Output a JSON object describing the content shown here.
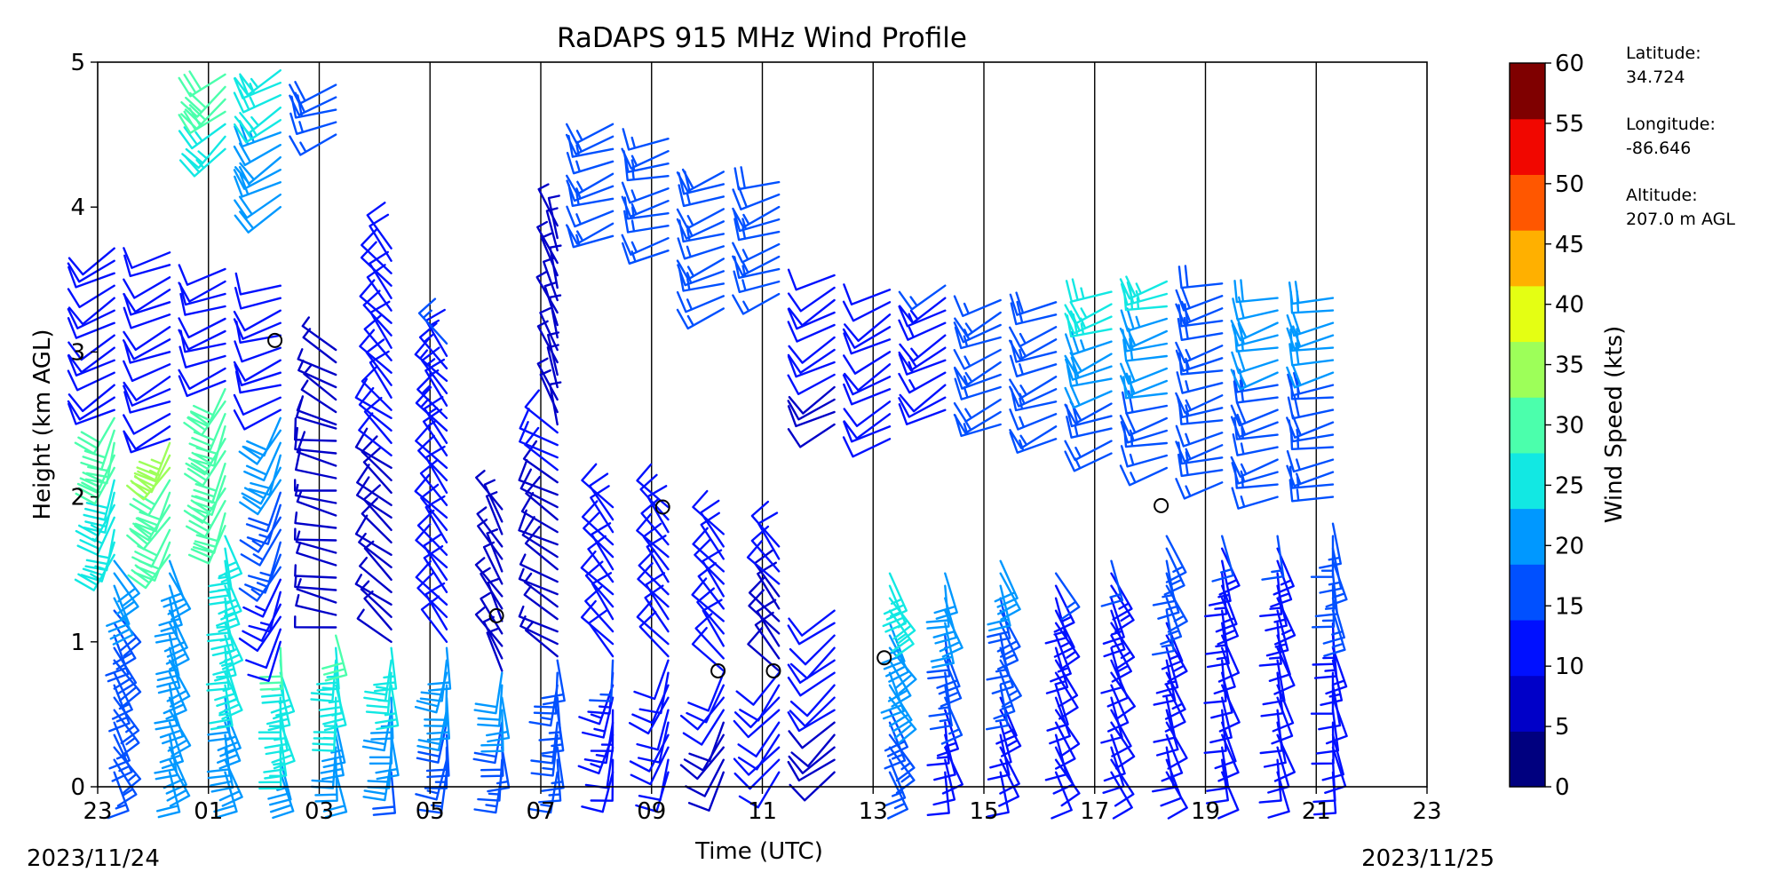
{
  "chart_data": {
    "type": "wind-barb profile",
    "title": "RaDAPS 915 MHz Wind Profile",
    "xlabel": "Time (UTC)",
    "ylabel": "Height (km AGL)",
    "ylim": [
      0,
      5
    ],
    "y_ticks": [
      "0",
      "1",
      "2",
      "3",
      "4",
      "5"
    ],
    "x_range_hours": [
      0,
      24
    ],
    "x_tick_labels": [
      "23",
      "01",
      "03",
      "05",
      "07",
      "09",
      "11",
      "13",
      "15",
      "17",
      "19",
      "21",
      "23"
    ],
    "x_start_date": "2023/11/24",
    "x_end_date": "2023/11/25",
    "vertical_grid": true,
    "colorbar": {
      "label": "Wind Speed (kts)",
      "ticks": [
        "0",
        "5",
        "10",
        "15",
        "20",
        "25",
        "30",
        "35",
        "40",
        "45",
        "50",
        "55",
        "60"
      ],
      "colors": [
        "#00007f",
        "#0000c8",
        "#0010ff",
        "#0050ff",
        "#0098ff",
        "#12e8e3",
        "#4bffac",
        "#9dff59",
        "#e4ff13",
        "#ffb000",
        "#ff5700",
        "#f10700",
        "#7f0000"
      ]
    },
    "profiles": [
      {
        "time_h": 0.3,
        "segments": [
          [
            0.1,
            1.6,
            150,
            16,
            19
          ],
          [
            1.6,
            2.6,
            200,
            26,
            29
          ],
          [
            2.6,
            3.8,
            240,
            12,
            12
          ]
        ]
      },
      {
        "time_h": 1.3,
        "segments": [
          [
            0.1,
            1.6,
            160,
            20,
            22
          ],
          [
            1.6,
            2.4,
            210,
            30,
            33
          ],
          [
            2.4,
            3.7,
            245,
            12,
            12
          ]
        ]
      },
      {
        "time_h": 2.3,
        "segments": [
          [
            0.1,
            1.8,
            165,
            22,
            25
          ],
          [
            1.8,
            2.8,
            205,
            28,
            32
          ],
          [
            2.8,
            3.6,
            250,
            10,
            11
          ],
          [
            4.4,
            5.0,
            230,
            26,
            30
          ]
        ]
      },
      {
        "time_h": 3.3,
        "segments": [
          [
            0.1,
            1.0,
            170,
            22,
            28
          ],
          [
            1.0,
            2.6,
            205,
            10,
            22
          ],
          [
            2.6,
            3.5,
            250,
            10,
            10
          ],
          [
            4.0,
            5.0,
            240,
            20,
            25
          ]
        ]
      },
      {
        "time_h": 4.3,
        "segments": [
          [
            0.1,
            1.1,
            175,
            20,
            28
          ],
          [
            1.1,
            2.5,
            280,
            6,
            8
          ],
          [
            2.5,
            3.1,
            300,
            6,
            6
          ],
          [
            4.5,
            4.9,
            250,
            17,
            18
          ]
        ]
      },
      {
        "time_h": 5.3,
        "segments": [
          [
            0.1,
            1.0,
            180,
            18,
            26
          ],
          [
            1.0,
            2.6,
            310,
            6,
            10
          ],
          [
            2.6,
            3.8,
            320,
            12,
            12
          ]
        ]
      },
      {
        "time_h": 6.3,
        "segments": [
          [
            0.1,
            1.0,
            185,
            16,
            22
          ],
          [
            1.0,
            3.1,
            320,
            10,
            14
          ]
        ]
      },
      {
        "time_h": 7.3,
        "segments": [
          [
            0.1,
            0.8,
            180,
            16,
            20
          ],
          [
            0.8,
            2.0,
            330,
            6,
            6
          ]
        ]
      },
      {
        "time_h": 8.3,
        "segments": [
          [
            0.1,
            0.9,
            180,
            14,
            18
          ],
          [
            0.9,
            2.5,
            300,
            6,
            10
          ],
          [
            2.5,
            3.9,
            340,
            6,
            6
          ]
        ]
      },
      {
        "time_h": 9.3,
        "segments": [
          [
            0.1,
            0.9,
            190,
            12,
            14
          ],
          [
            0.9,
            2.0,
            320,
            10,
            12
          ],
          [
            3.8,
            4.6,
            250,
            15,
            16
          ]
        ]
      },
      {
        "time_h": 10.3,
        "segments": [
          [
            0.1,
            0.9,
            200,
            10,
            12
          ],
          [
            0.9,
            2.0,
            320,
            10,
            10
          ],
          [
            3.7,
            4.5,
            255,
            15,
            16
          ]
        ]
      },
      {
        "time_h": 11.3,
        "segments": [
          [
            0.1,
            0.8,
            210,
            8,
            10
          ],
          [
            0.8,
            1.8,
            320,
            10,
            12
          ],
          [
            3.3,
            4.3,
            250,
            15,
            18
          ]
        ]
      },
      {
        "time_h": 12.3,
        "segments": [
          [
            0.1,
            0.8,
            220,
            10,
            10
          ],
          [
            0.8,
            1.7,
            320,
            8,
            10
          ],
          [
            3.4,
            4.2,
            250,
            14,
            18
          ]
        ]
      },
      {
        "time_h": 13.3,
        "segments": [
          [
            0.1,
            1.3,
            230,
            8,
            12
          ],
          [
            2.5,
            3.6,
            240,
            8,
            12
          ]
        ]
      },
      {
        "time_h": 14.3,
        "segments": [
          [
            0.1,
            1.5,
            150,
            14,
            26
          ],
          [
            2.4,
            3.5,
            240,
            10,
            12
          ]
        ]
      },
      {
        "time_h": 15.3,
        "segments": [
          [
            0.1,
            1.5,
            165,
            10,
            22
          ],
          [
            2.6,
            3.5,
            240,
            12,
            14
          ]
        ]
      },
      {
        "time_h": 16.3,
        "segments": [
          [
            0.1,
            1.6,
            160,
            10,
            20
          ],
          [
            2.5,
            3.4,
            245,
            14,
            17
          ]
        ]
      },
      {
        "time_h": 17.3,
        "segments": [
          [
            0.1,
            1.5,
            155,
            10,
            14
          ],
          [
            2.4,
            3.4,
            248,
            14,
            18
          ]
        ]
      },
      {
        "time_h": 18.3,
        "segments": [
          [
            0.1,
            1.6,
            155,
            10,
            14
          ],
          [
            2.3,
            3.5,
            250,
            15,
            26
          ]
        ]
      },
      {
        "time_h": 19.3,
        "segments": [
          [
            0.1,
            1.8,
            160,
            10,
            16
          ],
          [
            2.2,
            3.5,
            255,
            15,
            25
          ]
        ]
      },
      {
        "time_h": 20.3,
        "segments": [
          [
            0.1,
            1.8,
            165,
            10,
            14
          ],
          [
            2.1,
            3.5,
            255,
            16,
            18
          ]
        ]
      },
      {
        "time_h": 21.3,
        "segments": [
          [
            0.1,
            1.8,
            165,
            10,
            14
          ],
          [
            2.0,
            3.4,
            255,
            16,
            20
          ]
        ]
      },
      {
        "time_h": 22.3,
        "segments": [
          [
            0.1,
            1.9,
            170,
            10,
            16
          ],
          [
            2.0,
            3.4,
            258,
            16,
            20
          ]
        ]
      }
    ],
    "calm_markers": [
      {
        "time_h": 3.2,
        "height_km": 3.08
      },
      {
        "time_h": 7.2,
        "height_km": 1.18
      },
      {
        "time_h": 10.2,
        "height_km": 1.93
      },
      {
        "time_h": 11.2,
        "height_km": 0.8
      },
      {
        "time_h": 12.2,
        "height_km": 0.8
      },
      {
        "time_h": 14.2,
        "height_km": 0.89
      },
      {
        "time_h": 19.2,
        "height_km": 1.94
      }
    ]
  },
  "station": {
    "latitude_label": "Latitude:",
    "latitude_value": "34.724",
    "longitude_label": "Longitude:",
    "longitude_value": "-86.646",
    "altitude_label": "Altitude:",
    "altitude_value": "207.0 m AGL"
  }
}
